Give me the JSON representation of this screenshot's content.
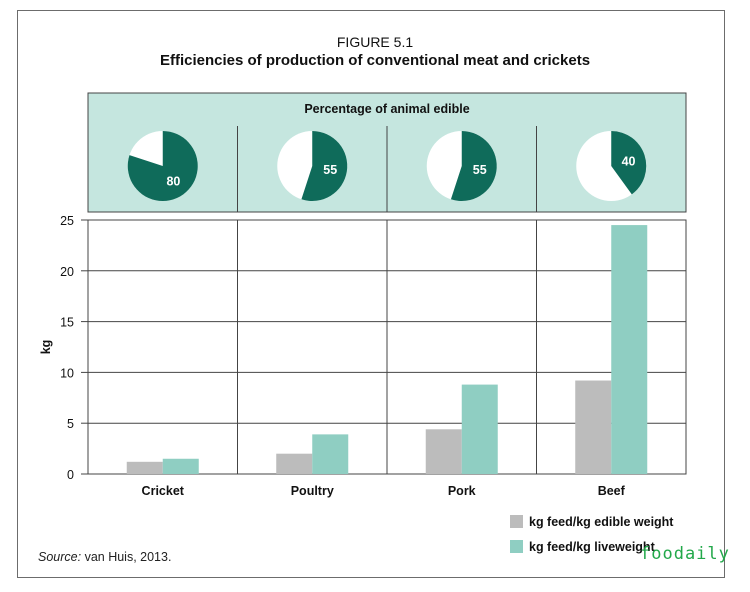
{
  "figure_label": "FIGURE 5.1",
  "title": "Efficiencies of production of conventional meat and crickets",
  "source_prefix": "Source:",
  "source_text": " van Huis, 2013.",
  "watermark": "foodaily",
  "colors": {
    "pie_panel_bg": "#c5e6df",
    "pie_fill": "#0f6b5a",
    "edible_weight": "#bcbcbc",
    "liveweight": "#8fcec2",
    "gridline": "#444444"
  },
  "chart_data": [
    {
      "type": "pie",
      "title": "Percentage of animal edible",
      "categories": [
        "Cricket",
        "Poultry",
        "Pork",
        "Beef"
      ],
      "values": [
        80,
        55,
        55,
        40
      ],
      "unit": "%"
    },
    {
      "type": "bar",
      "categories": [
        "Cricket",
        "Poultry",
        "Pork",
        "Beef"
      ],
      "series": [
        {
          "name": "kg feed/kg edible weight",
          "values": [
            1.2,
            2.0,
            4.4,
            9.2
          ]
        },
        {
          "name": "kg feed/kg liveweight",
          "values": [
            1.5,
            3.9,
            8.8,
            24.5
          ]
        }
      ],
      "ylabel": "kg",
      "ylim": [
        0,
        25
      ],
      "yticks": [
        0,
        5,
        10,
        15,
        20,
        25
      ],
      "grid": true,
      "legend": "bottom-right"
    }
  ]
}
